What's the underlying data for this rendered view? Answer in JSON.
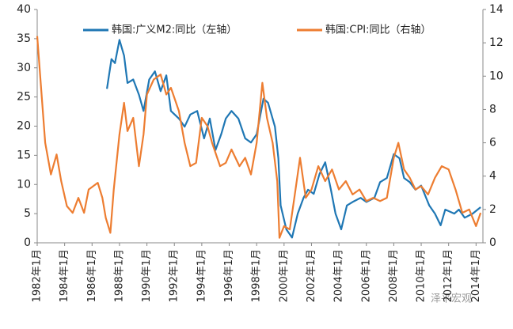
{
  "chart_data": {
    "type": "line",
    "xlim": [
      "1982-01",
      "2014-07"
    ],
    "xticks": [
      {
        "value": "1982-01",
        "label": "1982年1月"
      },
      {
        "value": "1984-01",
        "label": "1984年1月"
      },
      {
        "value": "1986-01",
        "label": "1986年1月"
      },
      {
        "value": "1988-01",
        "label": "1988年1月"
      },
      {
        "value": "1990-01",
        "label": "1990年1月"
      },
      {
        "value": "1992-01",
        "label": "1992年1月"
      },
      {
        "value": "1994-01",
        "label": "1994年1月"
      },
      {
        "value": "1996-01",
        "label": "1996年1月"
      },
      {
        "value": "1998-01",
        "label": "1998年1月"
      },
      {
        "value": "2000-01",
        "label": "2000年1月"
      },
      {
        "value": "2002-01",
        "label": "2002年1月"
      },
      {
        "value": "2004-01",
        "label": "2004年1月"
      },
      {
        "value": "2006-01",
        "label": "2006年1月"
      },
      {
        "value": "2008-01",
        "label": "2008年1月"
      },
      {
        "value": "2010-01",
        "label": "2010年1月"
      },
      {
        "value": "2012-01",
        "label": "2012年1月"
      },
      {
        "value": "2014-01",
        "label": "2014年1月"
      }
    ],
    "ylim": [
      0,
      40
    ],
    "yticks": [
      0,
      5,
      10,
      15,
      20,
      25,
      30,
      35,
      40
    ],
    "y2lim": [
      0,
      14
    ],
    "y2ticks": [
      0,
      2,
      4,
      6,
      8,
      10,
      12,
      14
    ],
    "legend": "top",
    "watermark": "泽平宏观",
    "series": [
      {
        "name": "韩国:广义M2:同比（左轴）",
        "color": "#1f77b4",
        "axis": "y",
        "x": [
          "1987-02",
          "1987-06",
          "1987-09",
          "1988-01",
          "1988-05",
          "1988-08",
          "1989-01",
          "1989-06",
          "1989-10",
          "1990-03",
          "1990-08",
          "1991-01",
          "1991-06",
          "1991-10",
          "1992-05",
          "1992-10",
          "1993-03",
          "1993-09",
          "1994-03",
          "1994-08",
          "1995-01",
          "1995-06",
          "1995-10",
          "1996-03",
          "1996-09",
          "1997-03",
          "1997-08",
          "1998-01",
          "1998-07",
          "1998-11",
          "1999-05",
          "1999-08",
          "1999-10",
          "2000-03",
          "2000-08",
          "2001-01",
          "2001-06",
          "2001-10",
          "2002-03",
          "2002-08",
          "2003-01",
          "2003-06",
          "2003-10",
          "2004-03",
          "2004-08",
          "2005-01",
          "2005-08",
          "2006-01",
          "2006-08",
          "2007-01",
          "2007-07",
          "2008-01",
          "2008-06",
          "2008-10",
          "2009-03",
          "2009-08",
          "2010-01",
          "2010-08",
          "2011-01",
          "2011-06",
          "2011-10",
          "2012-06",
          "2012-10",
          "2013-03",
          "2013-10",
          "2014-05"
        ],
        "values": [
          26.4,
          31.5,
          30.8,
          34.8,
          32.1,
          27.4,
          28,
          25.4,
          22.6,
          28,
          29.4,
          26,
          28.7,
          22.6,
          21.3,
          19.9,
          22,
          22.6,
          17.9,
          21.3,
          15.9,
          18.6,
          21.3,
          22.6,
          21.3,
          17.9,
          17.2,
          18.6,
          24.7,
          24,
          19.9,
          14.5,
          6.4,
          2.3,
          0.9,
          5,
          7.7,
          9.1,
          8.4,
          11.8,
          13.8,
          9.1,
          5,
          2.3,
          6.4,
          7,
          7.7,
          7,
          7.7,
          10.4,
          11.1,
          15.2,
          14.5,
          11.1,
          10.4,
          9.1,
          9.8,
          6.4,
          5,
          3,
          5.7,
          5,
          5.7,
          4.3,
          5,
          6.1
        ]
      },
      {
        "name": "韩国:CPI:同比（右轴）",
        "color": "#ed7d31",
        "axis": "y2",
        "x": [
          "1982-01",
          "1982-08",
          "1983-01",
          "1983-06",
          "1983-10",
          "1984-03",
          "1984-08",
          "1985-01",
          "1985-06",
          "1985-10",
          "1986-06",
          "1986-10",
          "1987-01",
          "1987-05",
          "1987-08",
          "1988-01",
          "1988-05",
          "1988-08",
          "1989-01",
          "1989-06",
          "1989-10",
          "1990-01",
          "1990-07",
          "1991-01",
          "1991-06",
          "1991-10",
          "1992-05",
          "1992-10",
          "1993-03",
          "1993-08",
          "1994-01",
          "1994-06",
          "1994-10",
          "1995-05",
          "1995-10",
          "1996-03",
          "1996-10",
          "1997-03",
          "1997-08",
          "1998-01",
          "1998-06",
          "1998-10",
          "1999-03",
          "1999-07",
          "1999-09",
          "2000-01",
          "2000-06",
          "2000-10",
          "2001-03",
          "2001-08",
          "2002-01",
          "2002-07",
          "2003-01",
          "2003-07",
          "2004-01",
          "2004-07",
          "2005-01",
          "2005-07",
          "2006-01",
          "2006-07",
          "2007-01",
          "2007-07",
          "2008-01",
          "2008-05",
          "2008-10",
          "2009-03",
          "2009-08",
          "2010-01",
          "2010-07",
          "2011-01",
          "2011-07",
          "2012-01",
          "2012-07",
          "2013-01",
          "2013-07",
          "2014-01",
          "2014-05"
        ],
        "values": [
          12.4,
          6,
          4.1,
          5.3,
          3.7,
          2.2,
          1.8,
          2.7,
          1.8,
          3.2,
          3.6,
          2.7,
          1.5,
          0.6,
          3.2,
          6.5,
          8.4,
          6.7,
          7.5,
          4.6,
          6.5,
          8.9,
          9.8,
          10.1,
          8.9,
          9.3,
          7.9,
          6,
          4.6,
          4.8,
          7.5,
          7,
          6,
          4.6,
          4.8,
          5.6,
          4.6,
          5.1,
          4.1,
          6,
          9.6,
          7.5,
          6,
          3.7,
          0.3,
          1,
          0.8,
          2.7,
          5.1,
          2.7,
          3.2,
          4.6,
          3.7,
          4.4,
          3.2,
          3.7,
          2.9,
          3.2,
          2.5,
          2.7,
          2.5,
          2.7,
          5.1,
          6,
          4.4,
          3.9,
          3.2,
          3.4,
          2.9,
          3.9,
          4.6,
          4.4,
          3.2,
          1.8,
          2,
          1,
          1.8
        ]
      }
    ]
  }
}
